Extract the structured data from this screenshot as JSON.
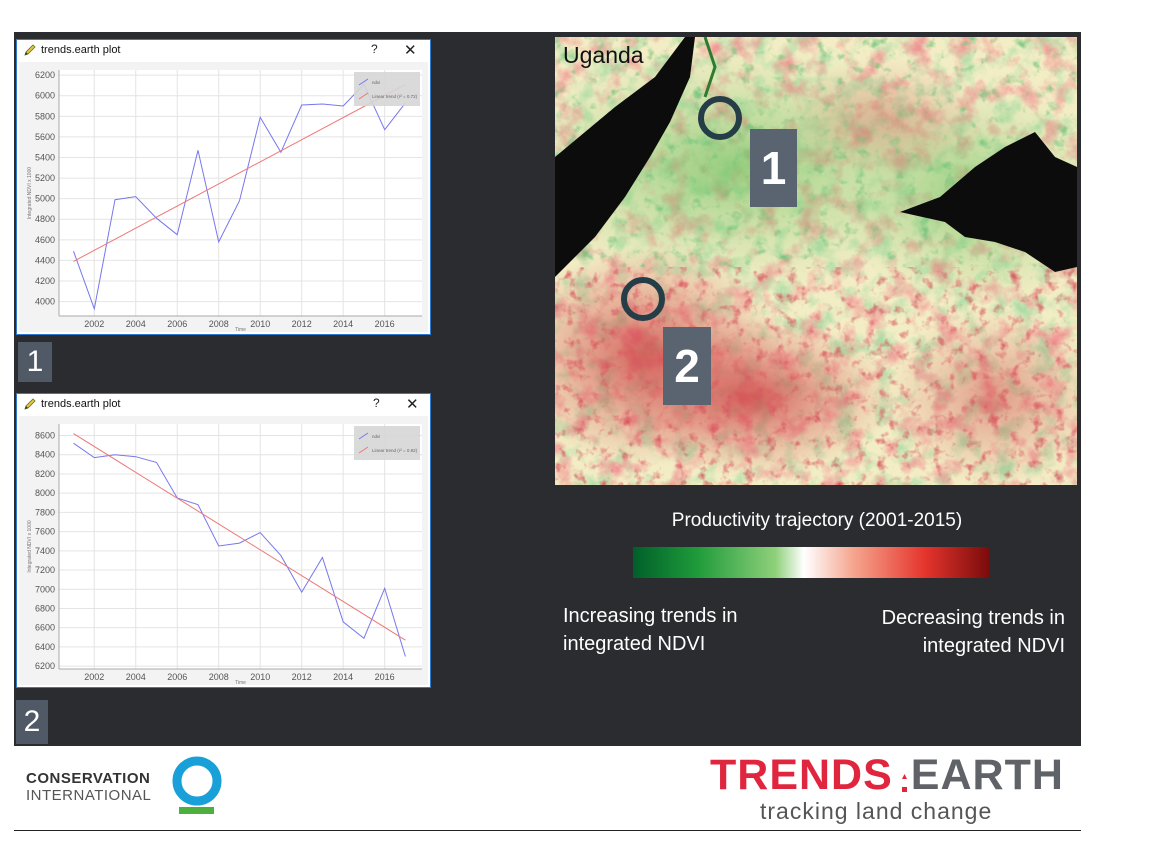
{
  "plots": [
    {
      "window_title": "trends.earth plot",
      "help_glyph": "?",
      "close_glyph": "✕",
      "badge": "1",
      "legend": [
        {
          "label": "ndvi"
        },
        {
          "label": "Linear trend (r² = 0.72)"
        }
      ],
      "xlabel": "Time",
      "ylabel": "Integrated NDVI x 1000",
      "chart_data": {
        "type": "line",
        "x_ticks": [
          "2002",
          "2004",
          "2006",
          "2008",
          "2010",
          "2012",
          "2014",
          "2016"
        ],
        "y_ticks": [
          "4000",
          "4200",
          "4400",
          "4600",
          "4800",
          "5000",
          "5200",
          "5400",
          "5600",
          "5800",
          "6000",
          "6200"
        ],
        "xlim": [
          2000.3,
          2017.8
        ],
        "ylim": [
          3860,
          6250
        ],
        "series": [
          {
            "name": "ndvi",
            "color": "#7777ee",
            "x": [
              2001,
              2002,
              2003,
              2004,
              2005,
              2006,
              2007,
              2008,
              2009,
              2010,
              2011,
              2012,
              2013,
              2014,
              2015,
              2016,
              2017
            ],
            "values": [
              4490,
              3930,
              4990,
              5020,
              4810,
              4650,
              5470,
              4580,
              4980,
              5790,
              5450,
              5910,
              5920,
              5900,
              6110,
              5670,
              5930
            ]
          },
          {
            "name": "Linear trend",
            "color": "#ee7777",
            "x": [
              2001,
              2017
            ],
            "values": [
              4390,
              6110
            ]
          }
        ]
      }
    },
    {
      "window_title": "trends.earth plot",
      "help_glyph": "?",
      "close_glyph": "✕",
      "badge": "2",
      "legend": [
        {
          "label": "ndvi"
        },
        {
          "label": "Linear trend (r² = 0.92)"
        }
      ],
      "xlabel": "Time",
      "ylabel": "Integrated NDVI x 1000",
      "chart_data": {
        "type": "line",
        "x_ticks": [
          "2002",
          "2004",
          "2006",
          "2008",
          "2010",
          "2012",
          "2014",
          "2016"
        ],
        "y_ticks": [
          "6200",
          "6400",
          "6600",
          "6800",
          "7000",
          "7200",
          "7400",
          "7600",
          "7800",
          "8000",
          "8200",
          "8400",
          "8600"
        ],
        "xlim": [
          2000.3,
          2017.8
        ],
        "ylim": [
          6170,
          8720
        ],
        "series": [
          {
            "name": "ndvi",
            "color": "#7777ee",
            "x": [
              2001,
              2002,
              2003,
              2004,
              2005,
              2006,
              2007,
              2008,
              2009,
              2010,
              2011,
              2012,
              2013,
              2014,
              2015,
              2016,
              2017
            ],
            "values": [
              8520,
              8370,
              8400,
              8380,
              8320,
              7950,
              7880,
              7450,
              7480,
              7590,
              7350,
              6970,
              7330,
              6660,
              6490,
              7010,
              6300
            ]
          },
          {
            "name": "Linear trend",
            "color": "#ee7777",
            "x": [
              2001,
              2017
            ],
            "values": [
              8620,
              6470
            ]
          }
        ]
      }
    }
  ],
  "map": {
    "title": "Uganda",
    "marker_1": "1",
    "marker_2": "2"
  },
  "legend": {
    "title": "Productivity trajectory (2001-2015)",
    "left_line1": "Increasing trends in",
    "left_line2": "integrated NDVI",
    "right_line1": "Decreasing trends in",
    "right_line2": "integrated NDVI",
    "colors": [
      "#005f2a",
      "#8ed07a",
      "#ffffff",
      "#e5342c",
      "#7a0c0c"
    ]
  },
  "footer": {
    "ci_line1": "CONSERVATION",
    "ci_line2": "INTERNATIONAL",
    "ci_ring_color": "#1aa0d8",
    "ci_bar_color": "#4caf3e",
    "te_part1": "TRENDS",
    "te_part2": "EARTH",
    "te_red": "#e0263f",
    "te_gray": "#5f6368",
    "tagline": "tracking land change"
  }
}
